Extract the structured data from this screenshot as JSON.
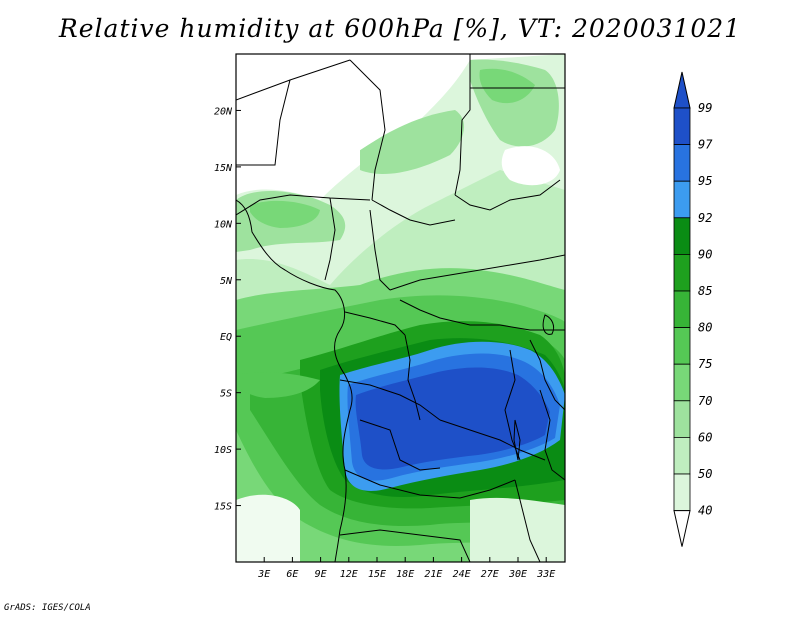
{
  "title": "Relative humidity at 600hPa [%], VT: 2020031021",
  "credit": "GrADS: IGES/COLA",
  "map": {
    "variable": "Relative humidity",
    "level": "600hPa",
    "units": "%",
    "lon_range": [
      0,
      35
    ],
    "lat_range": [
      -20,
      25
    ],
    "x_ticks": [
      "3E",
      "6E",
      "9E",
      "12E",
      "15E",
      "18E",
      "21E",
      "24E",
      "27E",
      "30E",
      "33E"
    ],
    "y_ticks": [
      "20N",
      "15N",
      "10N",
      "5N",
      "EQ",
      "5S",
      "10S",
      "15S"
    ]
  },
  "colorbar": {
    "levels": [
      "99",
      "97",
      "95",
      "92",
      "90",
      "85",
      "80",
      "75",
      "70",
      "60",
      "50",
      "40"
    ],
    "colors": [
      "#1e50c8",
      "#2873e0",
      "#3c9cf0",
      "#0a8c14",
      "#1ea01e",
      "#37b437",
      "#55c855",
      "#78d878",
      "#9ee29e",
      "#bfeebf",
      "#dcf6dc",
      "#f0fbf0"
    ]
  }
}
